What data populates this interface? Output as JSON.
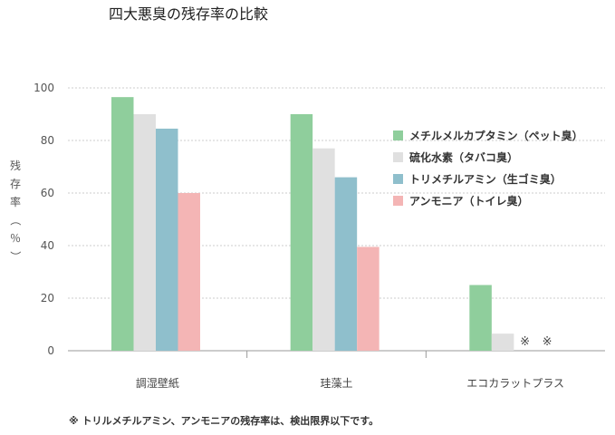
{
  "chart_data": {
    "type": "bar",
    "title": "四大悪臭の残存率の比較",
    "ylabel": "残存率（％）",
    "xlabel": "",
    "ylim": [
      0,
      100
    ],
    "yticks": [
      0,
      20,
      40,
      60,
      80,
      100
    ],
    "grid": true,
    "legend_position": "right",
    "categories": [
      "調湿壁紙",
      "珪藻土",
      "エコカラットプラス"
    ],
    "series": [
      {
        "name": "メチルメルカプタミン（ペット臭）",
        "color": "#8fce9c",
        "values": [
          96.5,
          90,
          25
        ]
      },
      {
        "name": "硫化水素（タバコ臭）",
        "color": "#e0e0e0",
        "values": [
          90,
          77,
          6.5
        ]
      },
      {
        "name": "トリメチルアミン（生ゴミ臭）",
        "color": "#8fbfcc",
        "values": [
          84.5,
          66,
          null
        ]
      },
      {
        "name": "アンモニア（トイレ臭）",
        "color": "#f4b5b5",
        "values": [
          60,
          39.5,
          null
        ]
      }
    ],
    "annotations": [
      {
        "text": "※",
        "category": "エコカラットプラス",
        "series_index": 2
      },
      {
        "text": "※",
        "category": "エコカラットプラス",
        "series_index": 3
      }
    ],
    "footnote": "※ トリルメチルアミン、アンモニアの残存率は、検出限界以下です。"
  }
}
